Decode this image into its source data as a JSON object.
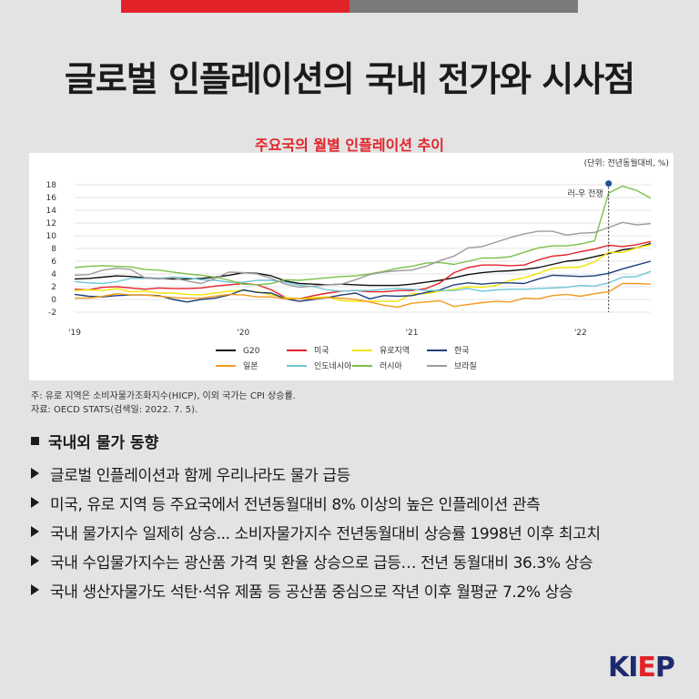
{
  "header": {
    "title": "글로벌 인플레이션의 국내 전가와 시사점"
  },
  "chart_data": {
    "type": "line",
    "title": "주요국의 월별 인플레이션 추이",
    "unit_note": "(단위: 전년동월대비, %)",
    "ylim": [
      -2,
      18
    ],
    "yticks": [
      -2,
      0,
      2,
      4,
      6,
      8,
      10,
      12,
      14,
      16,
      18
    ],
    "xlim": [
      0,
      41
    ],
    "xticks": [
      {
        "x": 0,
        "label": "'19"
      },
      {
        "x": 12,
        "label": "'20"
      },
      {
        "x": 24,
        "label": "'21"
      },
      {
        "x": 36,
        "label": "'22"
      }
    ],
    "grid": true,
    "legend_position": "bottom",
    "annotation": {
      "label": "러-우 전쟁",
      "x": 38,
      "y": 18.2
    },
    "series": [
      {
        "name": "G20",
        "color": "#111111",
        "values": [
          3.2,
          3.3,
          3.5,
          3.7,
          3.6,
          3.4,
          3.3,
          3.2,
          3.2,
          3.3,
          3.5,
          3.8,
          4.2,
          4.1,
          3.7,
          2.9,
          2.5,
          2.4,
          2.3,
          2.4,
          2.3,
          2.2,
          2.2,
          2.2,
          2.4,
          2.7,
          3.0,
          3.4,
          3.9,
          4.2,
          4.4,
          4.5,
          4.7,
          5.0,
          5.5,
          6.0,
          6.2,
          6.7,
          7.2,
          7.8,
          8.1,
          8.8
        ]
      },
      {
        "name": "미국",
        "color": "#e2232a",
        "values": [
          1.6,
          1.5,
          1.9,
          2.0,
          1.8,
          1.6,
          1.8,
          1.7,
          1.7,
          1.8,
          2.1,
          2.3,
          2.5,
          2.3,
          1.5,
          0.3,
          0.1,
          0.6,
          1.0,
          1.3,
          1.4,
          1.2,
          1.2,
          1.4,
          1.4,
          1.7,
          2.6,
          4.2,
          5.0,
          5.4,
          5.4,
          5.3,
          5.4,
          6.2,
          6.8,
          7.0,
          7.5,
          7.9,
          8.5,
          8.3,
          8.6,
          9.1
        ]
      },
      {
        "name": "유로지역",
        "color": "#f2e600",
        "values": [
          1.4,
          1.5,
          1.4,
          1.7,
          1.2,
          1.3,
          1.0,
          1.0,
          0.8,
          0.7,
          1.0,
          1.3,
          1.4,
          1.2,
          0.7,
          0.3,
          0.1,
          0.3,
          0.4,
          -0.2,
          -0.3,
          -0.3,
          -0.3,
          -0.3,
          0.9,
          0.9,
          1.3,
          1.6,
          2.0,
          1.9,
          2.2,
          3.0,
          3.4,
          4.1,
          4.9,
          5.0,
          5.1,
          5.9,
          7.4,
          7.4,
          8.1,
          8.6
        ]
      },
      {
        "name": "한국",
        "color": "#1f3f7a",
        "values": [
          0.8,
          0.5,
          0.4,
          0.6,
          0.7,
          0.7,
          0.6,
          0.0,
          -0.4,
          0.0,
          0.2,
          0.7,
          1.5,
          1.1,
          1.0,
          0.1,
          -0.3,
          0.0,
          0.3,
          0.7,
          1.0,
          0.1,
          0.6,
          0.5,
          0.6,
          1.1,
          1.5,
          2.3,
          2.6,
          2.4,
          2.6,
          2.6,
          2.5,
          3.2,
          3.8,
          3.7,
          3.6,
          3.7,
          4.1,
          4.8,
          5.4,
          6.0
        ]
      },
      {
        "name": "일본",
        "color": "#f39a1e",
        "values": [
          0.2,
          0.2,
          0.5,
          0.9,
          0.7,
          0.7,
          0.5,
          0.3,
          0.2,
          0.2,
          0.5,
          0.8,
          0.7,
          0.4,
          0.4,
          0.1,
          0.1,
          0.1,
          0.3,
          0.2,
          0.0,
          -0.4,
          -0.9,
          -1.2,
          -0.6,
          -0.4,
          -0.2,
          -1.1,
          -0.8,
          -0.5,
          -0.3,
          -0.4,
          0.2,
          0.1,
          0.6,
          0.8,
          0.5,
          0.9,
          1.2,
          2.5,
          2.5,
          2.4
        ]
      },
      {
        "name": "인도네시아",
        "color": "#6fc7d6",
        "values": [
          2.8,
          2.6,
          2.5,
          2.8,
          3.3,
          3.3,
          3.3,
          3.5,
          3.4,
          3.1,
          3.0,
          2.7,
          2.7,
          3.0,
          3.0,
          2.7,
          2.2,
          2.0,
          1.5,
          1.3,
          1.4,
          1.4,
          1.6,
          1.7,
          1.6,
          1.4,
          1.4,
          1.4,
          1.7,
          1.3,
          1.5,
          1.6,
          1.6,
          1.7,
          1.8,
          1.9,
          2.2,
          2.1,
          2.6,
          3.5,
          3.6,
          4.4
        ]
      },
      {
        "name": "러시아",
        "color": "#7bc04a",
        "values": [
          5.0,
          5.2,
          5.3,
          5.2,
          5.1,
          4.7,
          4.6,
          4.3,
          4.0,
          3.8,
          3.5,
          3.0,
          2.4,
          2.3,
          2.5,
          3.1,
          3.0,
          3.2,
          3.4,
          3.6,
          3.7,
          4.0,
          4.4,
          4.9,
          5.2,
          5.7,
          5.8,
          5.5,
          6.0,
          6.5,
          6.5,
          6.7,
          7.4,
          8.1,
          8.4,
          8.4,
          8.7,
          9.2,
          16.7,
          17.8,
          17.1,
          15.9
        ]
      },
      {
        "name": "브라질",
        "color": "#9c9c9c",
        "values": [
          3.8,
          3.9,
          4.6,
          4.9,
          4.7,
          3.4,
          3.2,
          3.4,
          2.9,
          2.5,
          3.3,
          4.3,
          4.2,
          4.0,
          3.3,
          2.4,
          1.9,
          2.1,
          2.3,
          2.4,
          3.1,
          3.9,
          4.3,
          4.5,
          4.6,
          5.2,
          6.1,
          6.8,
          8.1,
          8.3,
          9.0,
          9.7,
          10.3,
          10.7,
          10.7,
          10.1,
          10.4,
          10.5,
          11.3,
          12.1,
          11.7,
          11.9
        ]
      }
    ]
  },
  "notes": {
    "line1": "주: 유로 지역은 소비자물가조화지수(HICP), 이외 국가는 CPI 상승률.",
    "line2": "자료: OECD STATS(검색일: 2022. 7. 5)."
  },
  "section": {
    "heading": "국내외 물가 동향"
  },
  "bullets": [
    "글로벌 인플레이션과 함께 우리나라도 물가 급등",
    "미국, 유로 지역 등 주요국에서 전년동월대비 8% 이상의 높은 인플레이션 관측",
    "국내 물가지수 일제히 상승... 소비자물가지수 전년동월대비 상승률 1998년 이후 최고치",
    "국내 수입물가지수는 광산품 가격 및 환율 상승으로 급등… 전년 동월대비 36.3% 상승",
    "국내 생산자물가도 석탄·석유 제품 등 공산품 중심으로 작년 이후 월평균 7.2% 상승"
  ],
  "logo": {
    "text_main": "KI",
    "text_accent": "E",
    "text_end": "P"
  },
  "colors": {
    "accent_red": "#e2232a",
    "bar_gray": "#7a7a7a",
    "logo_navy": "#1e2a6e",
    "background": "#e3e3e3"
  }
}
